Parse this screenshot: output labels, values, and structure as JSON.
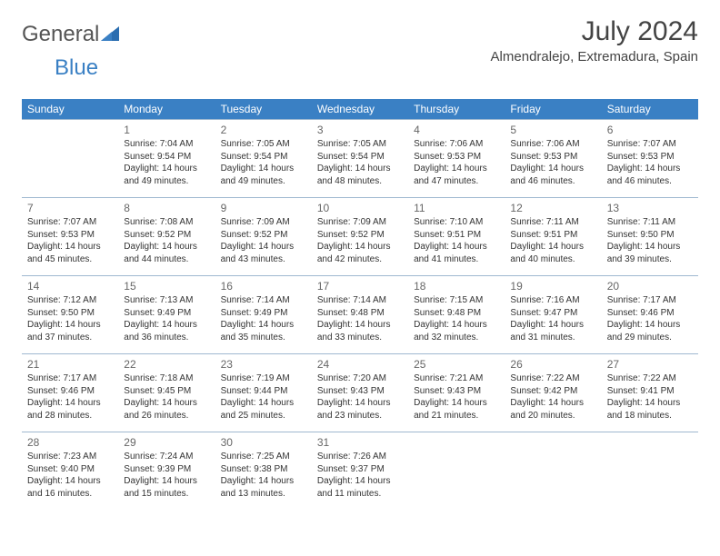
{
  "logo": {
    "part1": "General",
    "part2": "Blue"
  },
  "title": "July 2024",
  "location": "Almendralejo, Extremadura, Spain",
  "colors": {
    "header_bg": "#3a80c4",
    "header_text": "#ffffff",
    "border": "#9fb8d0",
    "text": "#333333",
    "daynum": "#666666"
  },
  "days_of_week": [
    "Sunday",
    "Monday",
    "Tuesday",
    "Wednesday",
    "Thursday",
    "Friday",
    "Saturday"
  ],
  "weeks": [
    [
      null,
      {
        "n": "1",
        "sr": "Sunrise: 7:04 AM",
        "ss": "Sunset: 9:54 PM",
        "dl": "Daylight: 14 hours and 49 minutes."
      },
      {
        "n": "2",
        "sr": "Sunrise: 7:05 AM",
        "ss": "Sunset: 9:54 PM",
        "dl": "Daylight: 14 hours and 49 minutes."
      },
      {
        "n": "3",
        "sr": "Sunrise: 7:05 AM",
        "ss": "Sunset: 9:54 PM",
        "dl": "Daylight: 14 hours and 48 minutes."
      },
      {
        "n": "4",
        "sr": "Sunrise: 7:06 AM",
        "ss": "Sunset: 9:53 PM",
        "dl": "Daylight: 14 hours and 47 minutes."
      },
      {
        "n": "5",
        "sr": "Sunrise: 7:06 AM",
        "ss": "Sunset: 9:53 PM",
        "dl": "Daylight: 14 hours and 46 minutes."
      },
      {
        "n": "6",
        "sr": "Sunrise: 7:07 AM",
        "ss": "Sunset: 9:53 PM",
        "dl": "Daylight: 14 hours and 46 minutes."
      }
    ],
    [
      {
        "n": "7",
        "sr": "Sunrise: 7:07 AM",
        "ss": "Sunset: 9:53 PM",
        "dl": "Daylight: 14 hours and 45 minutes."
      },
      {
        "n": "8",
        "sr": "Sunrise: 7:08 AM",
        "ss": "Sunset: 9:52 PM",
        "dl": "Daylight: 14 hours and 44 minutes."
      },
      {
        "n": "9",
        "sr": "Sunrise: 7:09 AM",
        "ss": "Sunset: 9:52 PM",
        "dl": "Daylight: 14 hours and 43 minutes."
      },
      {
        "n": "10",
        "sr": "Sunrise: 7:09 AM",
        "ss": "Sunset: 9:52 PM",
        "dl": "Daylight: 14 hours and 42 minutes."
      },
      {
        "n": "11",
        "sr": "Sunrise: 7:10 AM",
        "ss": "Sunset: 9:51 PM",
        "dl": "Daylight: 14 hours and 41 minutes."
      },
      {
        "n": "12",
        "sr": "Sunrise: 7:11 AM",
        "ss": "Sunset: 9:51 PM",
        "dl": "Daylight: 14 hours and 40 minutes."
      },
      {
        "n": "13",
        "sr": "Sunrise: 7:11 AM",
        "ss": "Sunset: 9:50 PM",
        "dl": "Daylight: 14 hours and 39 minutes."
      }
    ],
    [
      {
        "n": "14",
        "sr": "Sunrise: 7:12 AM",
        "ss": "Sunset: 9:50 PM",
        "dl": "Daylight: 14 hours and 37 minutes."
      },
      {
        "n": "15",
        "sr": "Sunrise: 7:13 AM",
        "ss": "Sunset: 9:49 PM",
        "dl": "Daylight: 14 hours and 36 minutes."
      },
      {
        "n": "16",
        "sr": "Sunrise: 7:14 AM",
        "ss": "Sunset: 9:49 PM",
        "dl": "Daylight: 14 hours and 35 minutes."
      },
      {
        "n": "17",
        "sr": "Sunrise: 7:14 AM",
        "ss": "Sunset: 9:48 PM",
        "dl": "Daylight: 14 hours and 33 minutes."
      },
      {
        "n": "18",
        "sr": "Sunrise: 7:15 AM",
        "ss": "Sunset: 9:48 PM",
        "dl": "Daylight: 14 hours and 32 minutes."
      },
      {
        "n": "19",
        "sr": "Sunrise: 7:16 AM",
        "ss": "Sunset: 9:47 PM",
        "dl": "Daylight: 14 hours and 31 minutes."
      },
      {
        "n": "20",
        "sr": "Sunrise: 7:17 AM",
        "ss": "Sunset: 9:46 PM",
        "dl": "Daylight: 14 hours and 29 minutes."
      }
    ],
    [
      {
        "n": "21",
        "sr": "Sunrise: 7:17 AM",
        "ss": "Sunset: 9:46 PM",
        "dl": "Daylight: 14 hours and 28 minutes."
      },
      {
        "n": "22",
        "sr": "Sunrise: 7:18 AM",
        "ss": "Sunset: 9:45 PM",
        "dl": "Daylight: 14 hours and 26 minutes."
      },
      {
        "n": "23",
        "sr": "Sunrise: 7:19 AM",
        "ss": "Sunset: 9:44 PM",
        "dl": "Daylight: 14 hours and 25 minutes."
      },
      {
        "n": "24",
        "sr": "Sunrise: 7:20 AM",
        "ss": "Sunset: 9:43 PM",
        "dl": "Daylight: 14 hours and 23 minutes."
      },
      {
        "n": "25",
        "sr": "Sunrise: 7:21 AM",
        "ss": "Sunset: 9:43 PM",
        "dl": "Daylight: 14 hours and 21 minutes."
      },
      {
        "n": "26",
        "sr": "Sunrise: 7:22 AM",
        "ss": "Sunset: 9:42 PM",
        "dl": "Daylight: 14 hours and 20 minutes."
      },
      {
        "n": "27",
        "sr": "Sunrise: 7:22 AM",
        "ss": "Sunset: 9:41 PM",
        "dl": "Daylight: 14 hours and 18 minutes."
      }
    ],
    [
      {
        "n": "28",
        "sr": "Sunrise: 7:23 AM",
        "ss": "Sunset: 9:40 PM",
        "dl": "Daylight: 14 hours and 16 minutes."
      },
      {
        "n": "29",
        "sr": "Sunrise: 7:24 AM",
        "ss": "Sunset: 9:39 PM",
        "dl": "Daylight: 14 hours and 15 minutes."
      },
      {
        "n": "30",
        "sr": "Sunrise: 7:25 AM",
        "ss": "Sunset: 9:38 PM",
        "dl": "Daylight: 14 hours and 13 minutes."
      },
      {
        "n": "31",
        "sr": "Sunrise: 7:26 AM",
        "ss": "Sunset: 9:37 PM",
        "dl": "Daylight: 14 hours and 11 minutes."
      },
      null,
      null,
      null
    ]
  ]
}
